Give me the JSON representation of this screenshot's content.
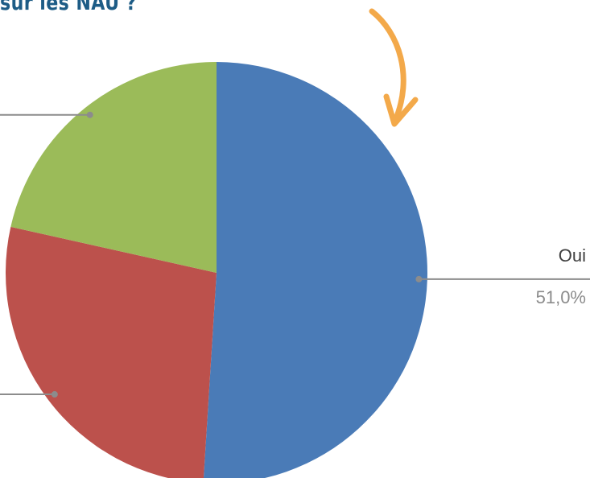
{
  "chart_data": {
    "type": "pie",
    "title": "sur les NAU ?",
    "slices": [
      {
        "label": "Oui",
        "value": 51.0,
        "value_label": "51,0%",
        "color": "#4a7bb7"
      },
      {
        "label": "",
        "value": 27.5,
        "value_label": "",
        "color": "#bc514c"
      },
      {
        "label": "",
        "value": 21.5,
        "value_label": "",
        "color": "#9bbb59"
      }
    ],
    "start_angle_deg": 0,
    "direction": "clockwise",
    "leader_line_color": "#8c8c8c"
  },
  "decorations": {
    "arrow": {
      "icon": "curved-arrow-down-icon",
      "color": "#f3a94a"
    }
  }
}
